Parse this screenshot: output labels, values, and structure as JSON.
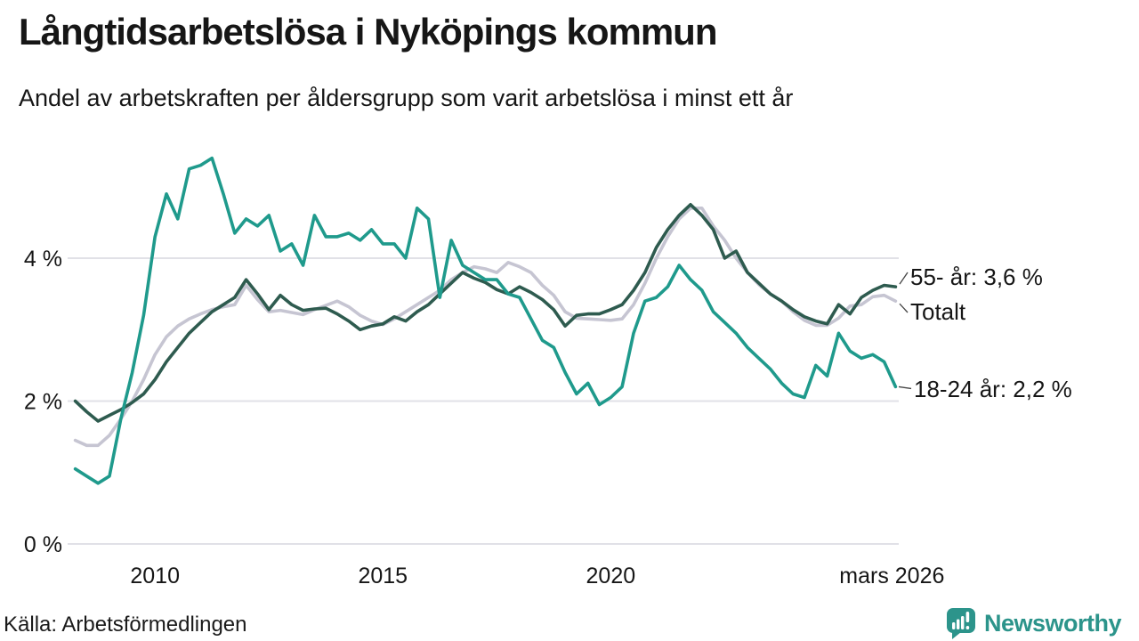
{
  "header": {
    "title": "Långtidsarbetslösa i Nyköpings kommun",
    "subtitle": "Andel av arbetskraften per åldersgrupp som varit arbetslösa i minst ett år"
  },
  "colors": {
    "text": "#161616",
    "gridline": "#e1e1e7",
    "connector": "#444444",
    "teal_series": "#1f9a8c",
    "dark_green_series": "#2e5b4f",
    "gray_series": "#c6c5d2",
    "logo_teal": "#2c948b"
  },
  "chart_data": {
    "type": "line",
    "title": "Långtidsarbetslösa i Nyköpings kommun",
    "subtitle": "Andel av arbetskraften per åldersgrupp som varit arbetslösa i minst ett år",
    "unit": "%",
    "resolution": "quarterly (estimated from monthly plot)",
    "xlim": [
      2008.2,
      2026.3
    ],
    "ylim": [
      0,
      5.6
    ],
    "grid": "horizontal",
    "legend_position": "right-end-labels",
    "y_ticks": [
      {
        "label": "0 %",
        "value": 0
      },
      {
        "label": "2 %",
        "value": 2
      },
      {
        "label": "4 %",
        "value": 4
      }
    ],
    "x_ticks": [
      {
        "label": "2010",
        "value": 2010
      },
      {
        "label": "2015",
        "value": 2015
      },
      {
        "label": "2020",
        "value": 2020
      },
      {
        "label": "mars 2026",
        "value": 2026.17
      }
    ],
    "x": [
      2008.25,
      2008.5,
      2008.75,
      2009,
      2009.25,
      2009.5,
      2009.75,
      2010,
      2010.25,
      2010.5,
      2010.75,
      2011,
      2011.25,
      2011.5,
      2011.75,
      2012,
      2012.25,
      2012.5,
      2012.75,
      2013,
      2013.25,
      2013.5,
      2013.75,
      2014,
      2014.25,
      2014.5,
      2014.75,
      2015,
      2015.25,
      2015.5,
      2015.75,
      2016,
      2016.25,
      2016.5,
      2016.75,
      2017,
      2017.25,
      2017.5,
      2017.75,
      2018,
      2018.25,
      2018.5,
      2018.75,
      2019,
      2019.25,
      2019.5,
      2019.75,
      2020,
      2020.25,
      2020.5,
      2020.75,
      2021,
      2021.25,
      2021.5,
      2021.75,
      2022,
      2022.25,
      2022.5,
      2022.75,
      2023,
      2023.25,
      2023.5,
      2023.75,
      2024,
      2024.25,
      2024.5,
      2024.75,
      2025,
      2025.25,
      2025.5,
      2025.75,
      2026,
      2026.25
    ],
    "series": [
      {
        "name": "18-24 år",
        "end_label": "18-24 år: 2,2 %",
        "end_value": 2.2,
        "color": "#1f9a8c",
        "values": [
          1.05,
          0.95,
          0.85,
          0.95,
          1.75,
          2.4,
          3.2,
          4.3,
          4.9,
          4.55,
          5.25,
          5.3,
          5.4,
          4.9,
          4.35,
          4.55,
          4.45,
          4.6,
          4.1,
          4.2,
          3.9,
          4.6,
          4.3,
          4.3,
          4.35,
          4.25,
          4.4,
          4.2,
          4.2,
          4.0,
          4.7,
          4.55,
          3.45,
          4.25,
          3.9,
          3.8,
          3.7,
          3.7,
          3.5,
          3.45,
          3.15,
          2.85,
          2.75,
          2.4,
          2.1,
          2.25,
          1.95,
          2.05,
          2.2,
          2.95,
          3.4,
          3.45,
          3.6,
          3.9,
          3.7,
          3.55,
          3.25,
          3.1,
          2.95,
          2.75,
          2.6,
          2.45,
          2.25,
          2.1,
          2.05,
          2.5,
          2.35,
          2.95,
          2.7,
          2.6,
          2.65,
          2.55,
          2.2
        ]
      },
      {
        "name": "55- år",
        "end_label": "55- år: 3,6 %",
        "end_value": 3.6,
        "color": "#2e5b4f",
        "values": [
          2.0,
          1.85,
          1.72,
          1.8,
          1.88,
          1.98,
          2.1,
          2.3,
          2.55,
          2.75,
          2.95,
          3.1,
          3.25,
          3.35,
          3.45,
          3.7,
          3.5,
          3.28,
          3.48,
          3.35,
          3.27,
          3.29,
          3.3,
          3.22,
          3.12,
          3.0,
          3.05,
          3.08,
          3.18,
          3.12,
          3.25,
          3.35,
          3.5,
          3.65,
          3.8,
          3.72,
          3.66,
          3.56,
          3.5,
          3.6,
          3.52,
          3.42,
          3.28,
          3.05,
          3.2,
          3.22,
          3.22,
          3.28,
          3.35,
          3.55,
          3.8,
          4.15,
          4.4,
          4.6,
          4.75,
          4.6,
          4.4,
          4.0,
          4.1,
          3.8,
          3.65,
          3.5,
          3.4,
          3.28,
          3.18,
          3.12,
          3.08,
          3.35,
          3.22,
          3.45,
          3.55,
          3.62,
          3.6
        ]
      },
      {
        "name": "Totalt",
        "end_label": "Totalt",
        "end_value": 3.4,
        "color": "#c6c5d2",
        "values": [
          1.45,
          1.38,
          1.38,
          1.52,
          1.75,
          2.0,
          2.3,
          2.65,
          2.9,
          3.05,
          3.15,
          3.22,
          3.28,
          3.32,
          3.35,
          3.62,
          3.42,
          3.25,
          3.27,
          3.24,
          3.21,
          3.28,
          3.34,
          3.4,
          3.32,
          3.2,
          3.12,
          3.07,
          3.15,
          3.25,
          3.35,
          3.45,
          3.55,
          3.7,
          3.8,
          3.88,
          3.85,
          3.8,
          3.94,
          3.88,
          3.8,
          3.62,
          3.48,
          3.25,
          3.16,
          3.15,
          3.14,
          3.13,
          3.15,
          3.35,
          3.65,
          4.0,
          4.3,
          4.55,
          4.7,
          4.7,
          4.45,
          4.25,
          4.0,
          3.8,
          3.63,
          3.5,
          3.4,
          3.25,
          3.13,
          3.06,
          3.06,
          3.16,
          3.33,
          3.35,
          3.46,
          3.48,
          3.4
        ]
      }
    ]
  },
  "footer": {
    "source": "Källa: Arbetsförmedlingen",
    "logo_text": "Newsworthy"
  }
}
